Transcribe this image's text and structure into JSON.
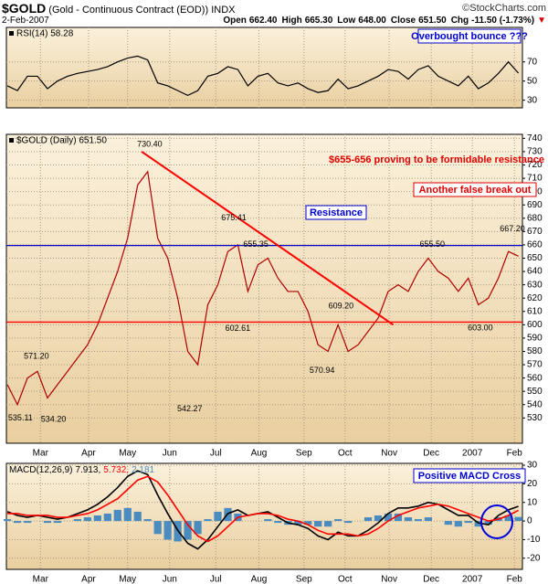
{
  "header": {
    "symbol": "$GOLD",
    "name": "(Gold - Continuous Contract (EOD))",
    "exchange": "INDX",
    "credit": "©StockCharts.com",
    "date": "2-Feb-2007",
    "quote": [
      {
        "label": "Open",
        "value": "662.40"
      },
      {
        "label": "High",
        "value": "665.30"
      },
      {
        "label": "Low",
        "value": "648.00"
      },
      {
        "label": "Close",
        "value": "651.50"
      },
      {
        "label": "Chg",
        "value": "-11.50 (-1.73%)"
      }
    ]
  },
  "chart_data": [
    {
      "type": "line",
      "title": "RSI(14) 58.28",
      "ylim": [
        22,
        106
      ],
      "yticks": [
        30,
        50,
        70
      ],
      "xlim": [
        -0.1,
        51.4
      ],
      "grid": true,
      "series": [
        {
          "color": "#000000",
          "values": [
            45,
            40,
            55,
            55,
            42,
            50,
            55,
            58,
            60,
            62,
            65,
            70,
            74,
            76,
            72,
            48,
            45,
            40,
            35,
            40,
            55,
            58,
            65,
            62,
            45,
            55,
            58,
            48,
            45,
            48,
            42,
            38,
            40,
            52,
            42,
            45,
            50,
            55,
            62,
            60,
            52,
            62,
            66,
            55,
            50,
            45,
            55,
            42,
            48,
            58,
            70,
            58.28
          ]
        }
      ],
      "annotations": [
        "Overbought bounce ???"
      ]
    },
    {
      "type": "line",
      "title": "$GOLD (Daily) 651.50",
      "ylim": [
        511,
        743
      ],
      "yticks": [
        530,
        540,
        550,
        560,
        570,
        580,
        590,
        600,
        610,
        620,
        630,
        640,
        650,
        660,
        670,
        680,
        690,
        700,
        710,
        720,
        730,
        740
      ],
      "xlim": [
        -0.1,
        51.4
      ],
      "grid": true,
      "xticks": [
        {
          "value": 3.3,
          "label": "Mar"
        },
        {
          "value": 8.1,
          "label": "Apr"
        },
        {
          "value": 12,
          "label": "May"
        },
        {
          "value": 16.2,
          "label": "Jun"
        },
        {
          "value": 20.8,
          "label": "Jul"
        },
        {
          "value": 25.1,
          "label": "Aug"
        },
        {
          "value": 29.6,
          "label": "Sep"
        },
        {
          "value": 33.7,
          "label": "Oct"
        },
        {
          "value": 38.1,
          "label": "Nov"
        },
        {
          "value": 42.3,
          "label": "Dec"
        },
        {
          "value": 46.4,
          "label": "2007"
        },
        {
          "value": 50.6,
          "label": "Feb"
        }
      ],
      "series": [
        {
          "color": "#b00000",
          "values": [
            555,
            540,
            560,
            565,
            545,
            555,
            565,
            575,
            585,
            600,
            620,
            640,
            665,
            705,
            715,
            665,
            650,
            620,
            580,
            570,
            615,
            630,
            655,
            660,
            625,
            645,
            650,
            635,
            625,
            625,
            610,
            585,
            580,
            600,
            580,
            585,
            595,
            605,
            625,
            630,
            625,
            640,
            650,
            640,
            635,
            625,
            635,
            615,
            620,
            635,
            655,
            651.5
          ]
        }
      ],
      "levels": [
        {
          "value": 602,
          "color": "#ff0000"
        },
        {
          "value": 659.5,
          "color": "#0000cc"
        }
      ],
      "trendline": {
        "x": [
          13.4,
          38.5
        ],
        "values": [
          730,
          600
        ],
        "color": "#ff0000"
      },
      "price_labels": [
        {
          "x": 1.3,
          "value": 535.11,
          "label": "535.11"
        },
        {
          "x": 2.9,
          "value": 571.2,
          "label": "571.20"
        },
        {
          "x": 4.6,
          "value": 534.2,
          "label": "534.20"
        },
        {
          "x": 14.2,
          "value": 730.4,
          "label": "730.40"
        },
        {
          "x": 18.2,
          "value": 542.27,
          "label": "542.27"
        },
        {
          "x": 22.6,
          "value": 675.41,
          "label": "675.41"
        },
        {
          "x": 23,
          "value": 602.61,
          "label": "602.61"
        },
        {
          "x": 24.8,
          "value": 655.35,
          "label": "655.35"
        },
        {
          "x": 31.4,
          "value": 570.94,
          "label": "570.94"
        },
        {
          "x": 33.3,
          "value": 609.2,
          "label": "609.20"
        },
        {
          "x": 42.4,
          "value": 655.5,
          "label": "655.50"
        },
        {
          "x": 47.2,
          "value": 603,
          "label": "603.00"
        },
        {
          "x": 50.4,
          "value": 667.2,
          "label": "667.20"
        }
      ],
      "annotations": [
        "$655-656 proving to be formidable resistance",
        "Resistance",
        "Another false break out"
      ]
    },
    {
      "type": "line",
      "ylim": [
        -26,
        31
      ],
      "yticks": [
        -20,
        -10,
        0,
        10,
        20,
        30
      ],
      "xlim": [
        -0.1,
        51.4
      ],
      "grid": true,
      "xticks": [
        {
          "value": 3.3,
          "label": "Mar"
        },
        {
          "value": 8.1,
          "label": "Apr"
        },
        {
          "value": 12,
          "label": "May"
        },
        {
          "value": 16.2,
          "label": "Jun"
        },
        {
          "value": 20.8,
          "label": "Jul"
        },
        {
          "value": 25.1,
          "label": "Aug"
        },
        {
          "value": 29.6,
          "label": "Sep"
        },
        {
          "value": 33.7,
          "label": "Oct"
        },
        {
          "value": 38.1,
          "label": "Nov"
        },
        {
          "value": 42.3,
          "label": "Dec"
        },
        {
          "value": 46.4,
          "label": "2007"
        },
        {
          "value": 50.6,
          "label": "Feb"
        }
      ],
      "legend_texts": [
        {
          "text": "MACD(12,26,9)",
          "color": "#000000"
        },
        {
          "text": "7.913,",
          "color": "#000000"
        },
        {
          "text": "5.732,",
          "color": "#ff0000"
        },
        {
          "text": "2.181",
          "color": "#4a8cc0"
        }
      ],
      "series": [
        {
          "type": "bar",
          "color": "#4a8cc0",
          "values": [
            1,
            -1,
            -1,
            0,
            -1,
            -1,
            0,
            1,
            2,
            3,
            4,
            6,
            7,
            5,
            1,
            -7,
            -10,
            -11,
            -10,
            -7,
            1,
            5,
            7,
            4,
            0,
            0,
            1,
            -1,
            -2,
            -2,
            -2,
            -3,
            -3,
            1,
            -1,
            0,
            2,
            3,
            4,
            4,
            2,
            1,
            2,
            0,
            -2,
            -3,
            -1,
            -3,
            -2,
            2,
            3,
            2.181
          ]
        },
        {
          "type": "line",
          "color": "#000000",
          "values": [
            5,
            3,
            2,
            3,
            2,
            1,
            2,
            4,
            6,
            9,
            13,
            18,
            24,
            27,
            25,
            14,
            4,
            -5,
            -12,
            -15,
            -10,
            -3,
            4,
            6,
            3,
            4,
            5,
            2,
            -1,
            -2,
            -4,
            -8,
            -10,
            -6,
            -8,
            -8,
            -5,
            -1,
            4,
            7,
            7,
            8,
            10,
            9,
            6,
            3,
            3,
            -1,
            -2,
            3,
            6,
            7.913
          ]
        },
        {
          "type": "line",
          "color": "#ff0000",
          "values": [
            4,
            4,
            3,
            3,
            3,
            2,
            2,
            3,
            4,
            6,
            9,
            12,
            17,
            22,
            24,
            21,
            14,
            6,
            -2,
            -8,
            -11,
            -8,
            -3,
            2,
            3,
            4,
            4,
            3,
            1,
            0,
            -2,
            -5,
            -7,
            -7,
            -7,
            -8,
            -7,
            -4,
            0,
            3,
            5,
            7,
            8,
            9,
            8,
            6,
            4,
            2,
            0,
            1,
            3,
            5.732
          ]
        }
      ],
      "annotations": [
        "Positive MACD Cross"
      ]
    }
  ]
}
